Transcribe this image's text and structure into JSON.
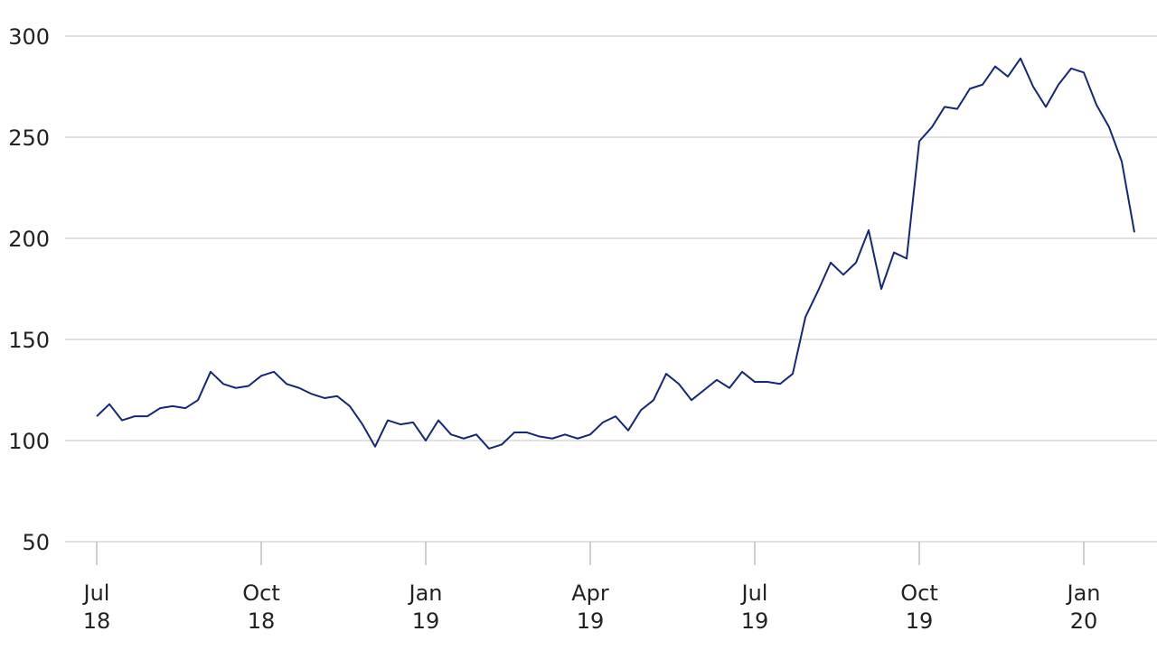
{
  "chart_data": {
    "type": "line",
    "categories": [
      "Jul\n18",
      null,
      null,
      null,
      null,
      null,
      null,
      null,
      null,
      null,
      null,
      null,
      null,
      "Oct\n18",
      null,
      null,
      null,
      null,
      null,
      null,
      null,
      null,
      null,
      null,
      null,
      null,
      "Jan\n19",
      null,
      null,
      null,
      null,
      null,
      null,
      null,
      null,
      null,
      null,
      null,
      null,
      "Apr\n19",
      null,
      null,
      null,
      null,
      null,
      null,
      null,
      null,
      null,
      null,
      null,
      null,
      "Jul\n19",
      null,
      null,
      null,
      null,
      null,
      null,
      null,
      null,
      null,
      null,
      null,
      null,
      "Oct\n19",
      null,
      null,
      null,
      null,
      null,
      null,
      null,
      null,
      null,
      null,
      null,
      null,
      "Jan\n20",
      null,
      null,
      null,
      null
    ],
    "series": [
      {
        "color": "#14277a",
        "values": [
          112,
          118,
          110,
          112,
          112,
          116,
          117,
          116,
          120,
          134,
          128,
          126,
          127,
          132,
          134,
          128,
          126,
          123,
          121,
          122,
          117,
          108,
          97,
          110,
          108,
          109,
          100,
          110,
          103,
          101,
          103,
          96,
          98,
          104,
          104,
          102,
          101,
          103,
          101,
          103,
          109,
          112,
          105,
          115,
          120,
          133,
          128,
          120,
          125,
          130,
          126,
          134,
          129,
          129,
          128,
          133,
          161,
          174,
          188,
          182,
          188,
          204,
          175,
          193,
          190,
          248,
          255,
          265,
          264,
          274,
          276,
          285,
          280,
          289,
          275,
          265,
          276,
          284,
          282,
          266,
          255,
          238,
          203
        ]
      }
    ],
    "ylim": [
      50,
      300
    ],
    "yticks": [
      50,
      100,
      150,
      200,
      250,
      300
    ],
    "grid": true
  }
}
